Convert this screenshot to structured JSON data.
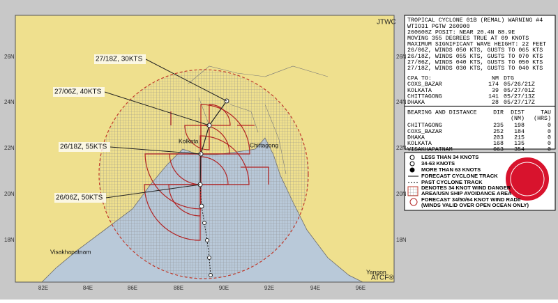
{
  "map": {
    "agency": "JTWC",
    "footer": "ATCF®",
    "lat_labels": [
      "26N",
      "24N",
      "22N",
      "20N",
      "18N"
    ],
    "lon_labels": [
      "82E",
      "84E",
      "86E",
      "88E",
      "90E",
      "92E",
      "94E",
      "96E"
    ],
    "places": [
      "Kolkata",
      "Chittagong",
      "Visakhapatnam",
      "Yangon"
    ],
    "forecast_labels": [
      "27/18Z, 30KTS",
      "27/06Z, 40KTS",
      "26/18Z, 55KTS",
      "26/06Z, 50KTS"
    ]
  },
  "panel": {
    "lines": [
      "TROPICAL CYCLONE 01B (REMAL) WARNING #4",
      "WTIO31 PGTW 260900",
      "260600Z POSIT: NEAR 20.4N 88.9E",
      "MOVING 355 DEGREES TRUE AT 09 KNOTS",
      "MAXIMUM SIGNIFICANT WAVE HEIGHT: 22 FEET",
      "26/06Z, WINDS 050 KTS, GUSTS TO 065 KTS",
      "26/18Z, WINDS 055 KTS, GUSTS TO 070 KTS",
      "27/06Z, WINDS 040 KTS, GUSTS TO 050 KTS",
      "27/18Z, WINDS 030 KTS, GUSTS TO 040 KTS"
    ],
    "cpa": {
      "header": [
        "CPA TO:",
        "NM",
        "DTG"
      ],
      "rows": [
        [
          "COXS_BAZAR",
          "174",
          "05/26/21Z"
        ],
        [
          "KOLKATA",
          "39",
          "05/27/01Z"
        ],
        [
          "CHITTAGONG",
          "141",
          "05/27/13Z"
        ],
        [
          "DHAKA",
          "28",
          "05/27/17Z"
        ]
      ]
    },
    "bearing": {
      "header": [
        "BEARING AND DISTANCE",
        "DIR",
        "DIST",
        "TAU"
      ],
      "subheader": [
        "(NM)",
        "(HRS)"
      ],
      "rows": [
        [
          "CHITTAGONG",
          "235",
          "198",
          "0"
        ],
        [
          "COXS_BAZAR",
          "252",
          "184",
          "0"
        ],
        [
          "DHAKA",
          "203",
          "215",
          "0"
        ],
        [
          "KOLKATA",
          "168",
          "135",
          "0"
        ],
        [
          "VISAKHAPATNAM",
          "063",
          "354",
          "0"
        ]
      ]
    }
  },
  "legend": [
    "LESS THAN 34 KNOTS",
    "34-63 KNOTS",
    "MORE THAN 63 KNOTS",
    "FORECAST CYCLONE TRACK",
    "PAST CYCLONE TRACK",
    "DENOTES 34 KNOT WIND DANGER",
    "AREA/USN SHIP AVOIDANCE AREA",
    "FORECAST 34/50/64 KNOT WIND RADII",
    "(WINDS VALID OVER OPEN OCEAN ONLY)"
  ]
}
